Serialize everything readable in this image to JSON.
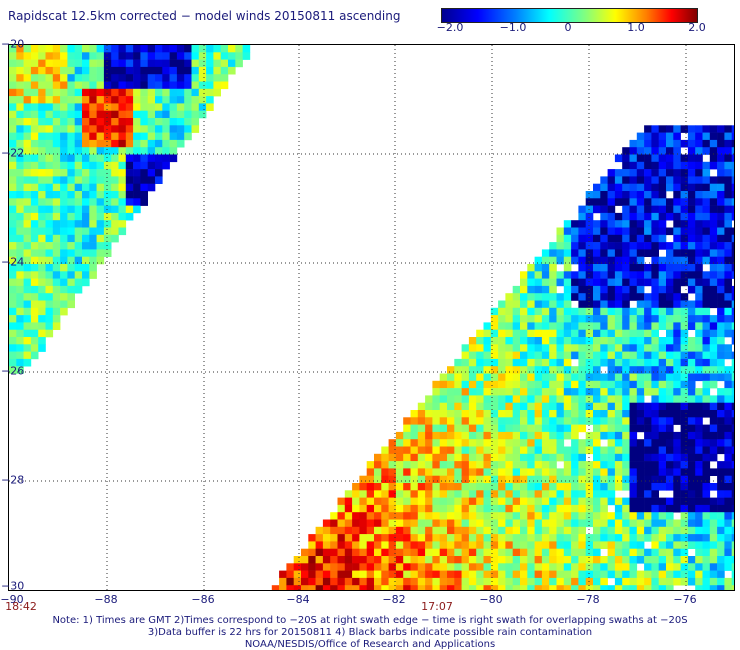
{
  "title": "Rapidscat 12.5km corrected − model winds 20150811 ascending",
  "colorbar": {
    "ticks": [
      "−2.0",
      "−1.0",
      "0",
      "1.0",
      "2.0"
    ],
    "range": [
      -2.0,
      2.0
    ]
  },
  "axes": {
    "lat_ticks": [
      "−20",
      "−22",
      "−24",
      "−26",
      "−28",
      "−30"
    ],
    "lon_ticks": [
      "−90",
      "−88",
      "−86",
      "−84",
      "−82",
      "−80",
      "−78",
      "−76"
    ],
    "lat_range": [
      -30,
      -20
    ],
    "lon_range": [
      -90,
      -75
    ],
    "grid": true
  },
  "swath_times": {
    "left": "18:42",
    "right": "17:07"
  },
  "notes": [
    "Note: 1) Times are GMT 2)Times correspond to −20S at right swath edge − time is right swath for overlapping swaths at −20S",
    "3)Data buffer is 22 hrs for 20150811 4) Black barbs indicate possible rain contamination",
    "NOAA/NESDIS/Office of Research and Applications"
  ]
}
